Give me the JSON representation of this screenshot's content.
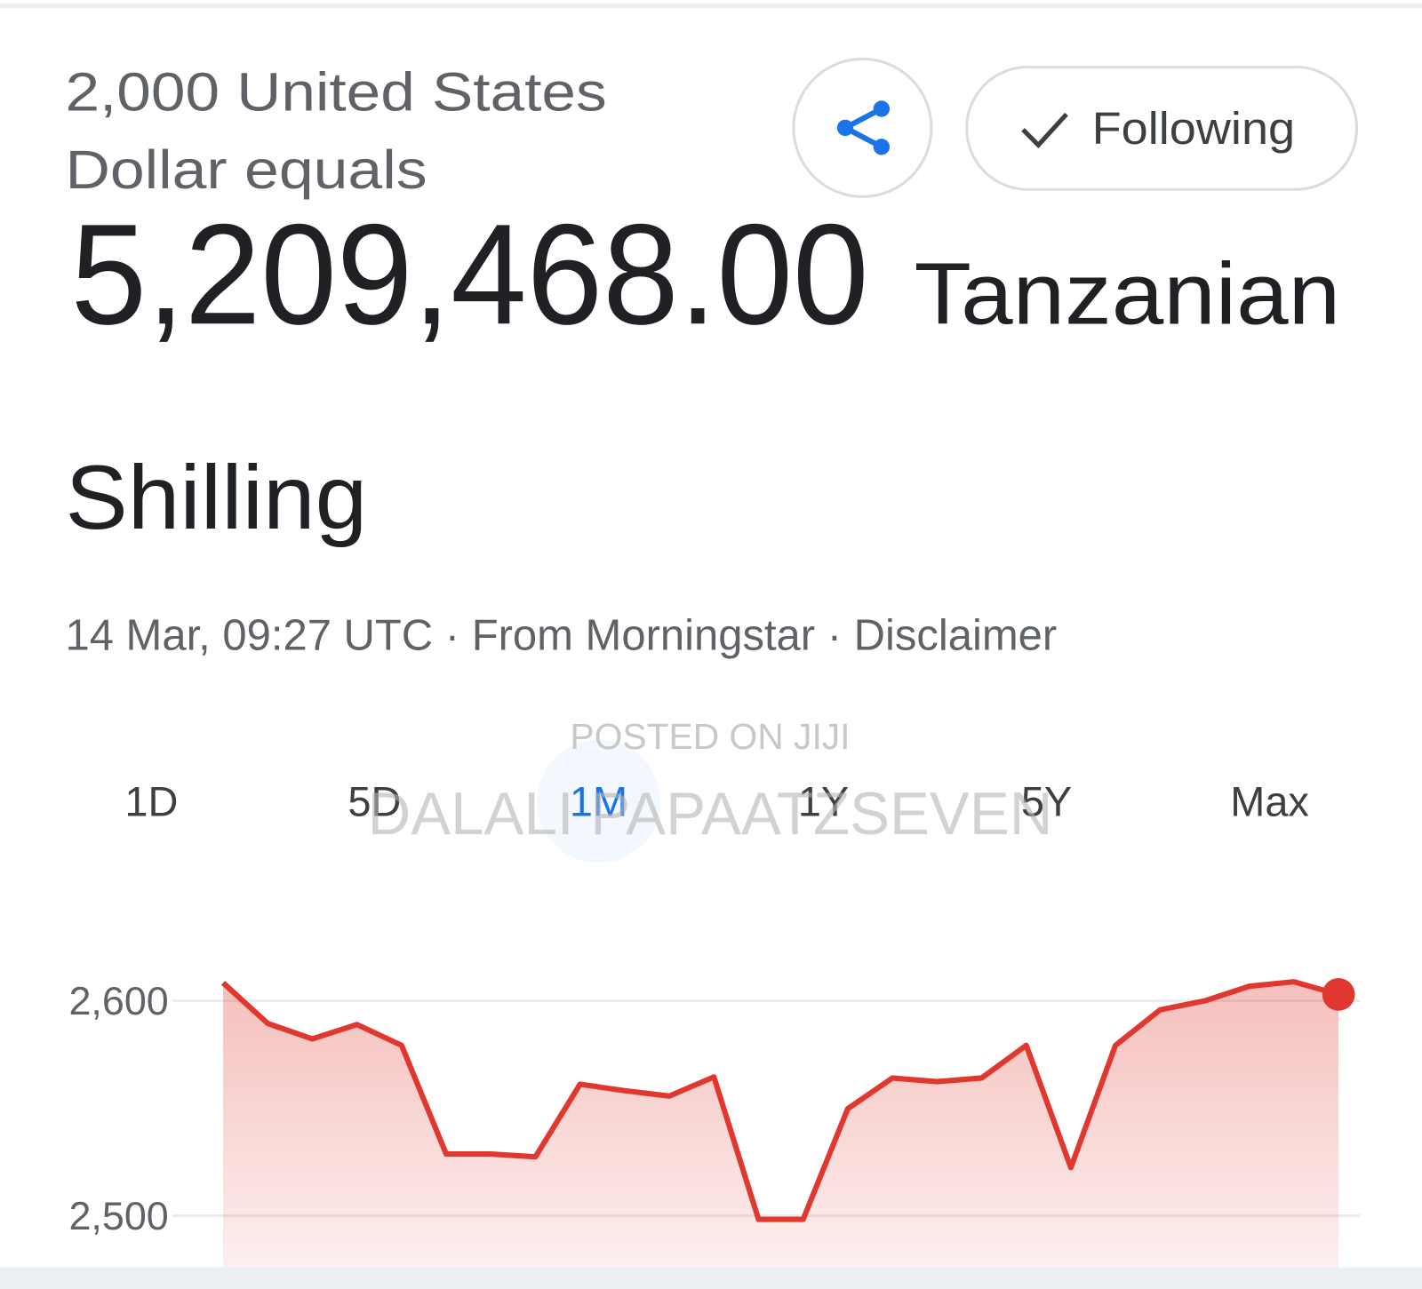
{
  "header": {
    "query_line1": "2,000 United States",
    "query_line2": "Dollar equals",
    "amount": "5,209,468.00",
    "unit_line1": "Tanzanian",
    "unit_line2": "Shilling"
  },
  "actions": {
    "following": "Following"
  },
  "meta": {
    "updated": "14 Mar, 09:27 UTC",
    "separator": "·",
    "source": "From Morningstar",
    "disclaimer": "Disclaimer"
  },
  "watermark": {
    "line1": "POSTED ON JIJI",
    "line2": "DALALI PAPAATZSEVEN"
  },
  "range_tabs": {
    "labels": [
      "1D",
      "5D",
      "1M",
      "1Y",
      "5Y",
      "Max"
    ],
    "selected": 2
  },
  "chart_data": {
    "type": "area",
    "categories": [
      null,
      null,
      null,
      null,
      null,
      null,
      null,
      null,
      null,
      null,
      null,
      null,
      null,
      null,
      null,
      null,
      null,
      null,
      null,
      null,
      null,
      null,
      null,
      null,
      null,
      null
    ],
    "values": [
      2608.4,
      2589.5,
      2582.3,
      2589.0,
      2579.3,
      2528.7,
      2528.7,
      2527.4,
      2561.2,
      2558.2,
      2555.7,
      2564.6,
      2498.3,
      2498.3,
      2549.8,
      2564.1,
      2562.4,
      2564.1,
      2579.3,
      2522.4,
      2579.3,
      2595.8,
      2600.0,
      2606.8,
      2608.9,
      2603.0
    ],
    "color": "#e0382e",
    "ylim": [
      2476,
      2622
    ],
    "yticks": [
      {
        "value": 2600,
        "label": "2,600"
      },
      {
        "value": 2500,
        "label": "2,500"
      }
    ],
    "grid": true
  }
}
